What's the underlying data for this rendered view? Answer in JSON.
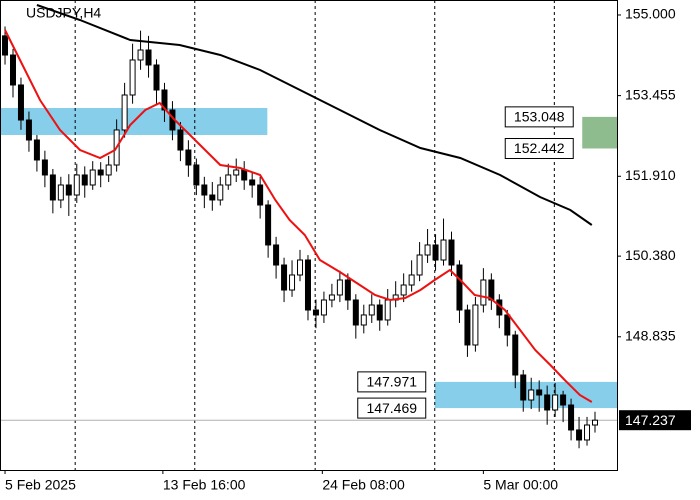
{
  "chart_data": {
    "type": "candlestick",
    "title": "USDJPY,H4",
    "xlim": [
      -0.63,
      76.76
    ],
    "ylim": [
      146.283,
      155.287
    ],
    "yticks": [
      {
        "value": 155,
        "label": "155.000"
      },
      153.455,
      {
        "value": 151.91,
        "label": "151.910"
      },
      {
        "value": 150.38,
        "label": "150.380"
      },
      148.835
    ],
    "xticks": [
      {
        "value": 0,
        "label": "5 Feb 2025"
      },
      {
        "value": 19.8,
        "label": "13 Feb 16:00"
      },
      {
        "value": 39.8,
        "label": "24 Feb 08:00"
      },
      {
        "value": 60,
        "label": "5 Mar 00:00"
      }
    ],
    "xgrid": [
      8.8,
      23.8,
      38.9,
      53.9,
      68.9
    ],
    "bull_color": "#ffffff",
    "bear_color": "#000000",
    "open": [
      154.6,
      154.233,
      153.659,
      152.988,
      152.605,
      152.222,
      151.935,
      151.456,
      151.743,
      151.551,
      151.935,
      151.743,
      152.03,
      151.935,
      152.126,
      152.797,
      153.467,
      154.138,
      154.329,
      154.042,
      153.563,
      153.18,
      152.797,
      152.413,
      152.126,
      151.743,
      151.551,
      151.456,
      151.743,
      151.935,
      152.03,
      151.839,
      151.743,
      151.36,
      150.594,
      150.21,
      149.731,
      150.019,
      150.306,
      149.348,
      149.253,
      149.54,
      149.636,
      149.923,
      149.54,
      149.061,
      149.253,
      149.444,
      149.157,
      149.54,
      149.636,
      149.827,
      150.019,
      150.402,
      150.594,
      150.306,
      150.689,
      150.21,
      149.348,
      148.678,
      149.444,
      149.923,
      149.54,
      149.253,
      148.869,
      148.103,
      147.624,
      147.816,
      147.72,
      147.433,
      147.72,
      147.528,
      147.05,
      146.858,
      147.145
    ],
    "high": [
      154.78,
      154.35,
      153.8,
      153.15,
      152.7,
      152.4,
      152.05,
      151.9,
      151.95,
      152.15,
      152.1,
      152.2,
      152.18,
      152.3,
      153.0,
      153.7,
      154.45,
      154.7,
      154.6,
      154.15,
      153.7,
      153.35,
      152.95,
      152.6,
      152.25,
      151.9,
      151.8,
      151.9,
      152.15,
      152.25,
      152.2,
      152.0,
      151.9,
      151.45,
      150.75,
      150.35,
      150.3,
      150.5,
      150.4,
      149.55,
      149.7,
      149.85,
      150.1,
      150.05,
      149.65,
      149.45,
      149.65,
      149.55,
      149.75,
      149.9,
      150.05,
      150.3,
      150.65,
      150.9,
      150.8,
      151.1,
      150.85,
      150.3,
      149.45,
      149.6,
      150.15,
      150.05,
      149.65,
      149.35,
      148.95,
      148.2,
      148.05,
      148.0,
      147.9,
      147.95,
      147.8,
      147.65,
      147.3,
      147.3,
      147.4
    ],
    "low": [
      154.05,
      153.42,
      152.8,
      152.38,
      152.0,
      151.7,
      151.2,
      151.3,
      151.15,
      151.4,
      151.5,
      151.65,
      151.7,
      151.8,
      152.0,
      152.65,
      153.3,
      153.95,
      153.8,
      153.3,
      152.95,
      152.6,
      152.2,
      151.9,
      151.55,
      151.3,
      151.25,
      151.35,
      151.65,
      151.8,
      151.65,
      151.5,
      151.1,
      150.35,
      149.95,
      149.5,
      149.6,
      149.9,
      149.15,
      149.0,
      149.1,
      149.4,
      149.5,
      149.35,
      148.8,
      148.9,
      149.1,
      148.95,
      149.05,
      149.4,
      149.5,
      149.7,
      149.9,
      150.25,
      150.1,
      150.2,
      150.0,
      149.1,
      148.45,
      148.55,
      149.3,
      149.35,
      149.0,
      148.65,
      147.85,
      147.4,
      147.45,
      147.4,
      147.15,
      147.3,
      147.2,
      146.85,
      146.7,
      146.75,
      147.0
    ],
    "close": [
      154.233,
      153.659,
      152.988,
      152.605,
      152.222,
      151.935,
      151.456,
      151.743,
      151.551,
      151.935,
      151.743,
      152.03,
      151.935,
      152.126,
      152.797,
      153.467,
      154.138,
      154.329,
      154.042,
      153.563,
      153.18,
      152.797,
      152.413,
      152.126,
      151.743,
      151.551,
      151.456,
      151.743,
      151.935,
      152.03,
      151.839,
      151.743,
      151.36,
      150.594,
      150.21,
      149.731,
      150.019,
      150.306,
      149.348,
      149.253,
      149.54,
      149.636,
      149.923,
      149.54,
      149.061,
      149.253,
      149.444,
      149.157,
      149.54,
      149.636,
      149.827,
      150.019,
      150.402,
      150.594,
      150.306,
      150.689,
      150.21,
      149.348,
      148.678,
      149.444,
      149.923,
      149.54,
      149.253,
      148.869,
      148.103,
      147.624,
      147.816,
      147.72,
      147.433,
      147.72,
      147.528,
      147.05,
      146.858,
      147.145,
      147.237
    ],
    "lines": [
      {
        "color": "#ee1111",
        "x": [
          0,
          1.88,
          4.39,
          6.9,
          9.41,
          11.92,
          13.8,
          15.7,
          17.6,
          19.4,
          21.3,
          23.2,
          25.1,
          27.0,
          29.5,
          32.0,
          33.9,
          35.7,
          37.6,
          39.5,
          42.0,
          44.5,
          46.4,
          48.3,
          50.2,
          52.1,
          53.9,
          55.8,
          57.1,
          58.9,
          60.8,
          62.7,
          64.6,
          66.5,
          68.4,
          70.2,
          72.1,
          73.6
        ],
        "values": [
          154.712,
          154.138,
          153.371,
          152.797,
          152.413,
          152.26,
          152.413,
          152.892,
          153.18,
          153.314,
          152.988,
          152.701,
          152.413,
          152.126,
          152.069,
          151.935,
          151.456,
          151.072,
          150.785,
          150.306,
          150.076,
          149.827,
          149.636,
          149.54,
          149.578,
          149.731,
          149.923,
          150.115,
          149.923,
          149.636,
          149.578,
          149.348,
          148.965,
          148.582,
          148.295,
          148.007,
          147.72,
          147.586
        ]
      },
      {
        "color": "#000000",
        "x": [
          4,
          9.4,
          15.7,
          21.9,
          27.0,
          32.0,
          37.0,
          42.0,
          47.0,
          52.1,
          57.1,
          62.1,
          67.1,
          70.9,
          73.6
        ],
        "values": [
          155.191,
          154.904,
          154.521,
          154.425,
          154.233,
          153.946,
          153.563,
          153.18,
          152.797,
          152.452,
          152.26,
          151.935,
          151.513,
          151.264,
          150.977
        ]
      }
    ],
    "zones": [
      {
        "low": 152.701,
        "high": 153.218,
        "x0": -0.63,
        "x1": 32.9,
        "color": "#87ceeb"
      },
      {
        "low": 152.442,
        "high": 153.048,
        "x0": 72.4,
        "color": "#8fbc8f",
        "labeled": true
      },
      {
        "low": 147.469,
        "high": 147.971,
        "x0": 53.9,
        "color": "#87ceeb",
        "labeled": true
      }
    ],
    "current_price": 147.237
  }
}
